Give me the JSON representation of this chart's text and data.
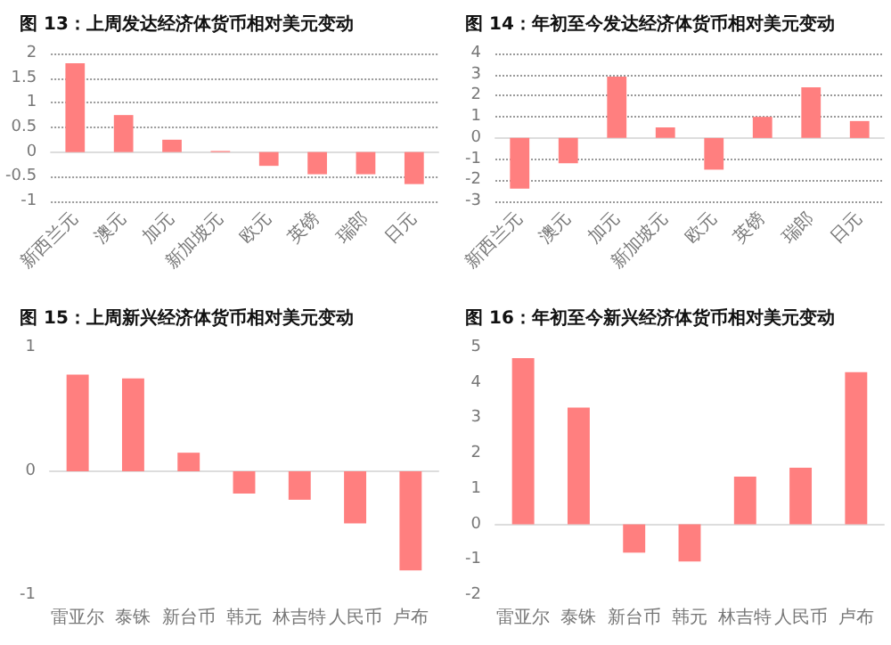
{
  "chart_data": [
    {
      "type": "bar",
      "title": "图 13：上周发达经济体货币相对美元变动",
      "categories": [
        "新西兰元",
        "澳元",
        "加元",
        "新加坡元",
        "欧元",
        "英镑",
        "瑞郎",
        "日元"
      ],
      "values": [
        1.8,
        0.75,
        0.25,
        0.02,
        -0.28,
        -0.45,
        -0.45,
        -0.65
      ],
      "color": "#ff7f7f",
      "ylim": [
        -1,
        2
      ],
      "yticks": [
        -1,
        -0.5,
        0,
        0.5,
        1,
        1.5,
        2
      ],
      "grid": "y"
    },
    {
      "type": "bar",
      "title": "图 14：年初至今发达经济体货币相对美元变动",
      "categories": [
        "新西兰元",
        "澳元",
        "加元",
        "新加坡元",
        "欧元",
        "英镑",
        "瑞郎",
        "日元"
      ],
      "values": [
        -2.4,
        -1.2,
        2.9,
        0.5,
        -1.5,
        1.0,
        2.4,
        0.8
      ],
      "color": "#ff7f7f",
      "ylim": [
        -3,
        4
      ],
      "yticks": [
        -3,
        -2,
        -1,
        0,
        1,
        2,
        3,
        4
      ],
      "grid": "y"
    },
    {
      "type": "bar",
      "title": "图 15：上周新兴经济体货币相对美元变动",
      "categories": [
        "雷亚尔",
        "泰铢",
        "新台币",
        "韩元",
        "林吉特",
        "人民币",
        "卢布"
      ],
      "values": [
        0.78,
        0.75,
        0.15,
        -0.18,
        -0.23,
        -0.42,
        -0.8
      ],
      "color": "#ff7f7f",
      "ylim": [
        -1,
        1
      ],
      "yticks": [
        -1,
        0,
        1
      ]
    },
    {
      "type": "bar",
      "title": "图 16：年初至今新兴经济体货币相对美元变动",
      "categories": [
        "雷亚尔",
        "泰铢",
        "新台币",
        "韩元",
        "林吉特",
        "人民币",
        "卢布"
      ],
      "values": [
        4.7,
        3.3,
        -0.8,
        -1.05,
        1.35,
        1.6,
        4.3
      ],
      "color": "#ff7f7f",
      "ylim": [
        -2,
        5
      ],
      "yticks": [
        -2,
        -1,
        0,
        1,
        2,
        3,
        4,
        5
      ]
    }
  ]
}
